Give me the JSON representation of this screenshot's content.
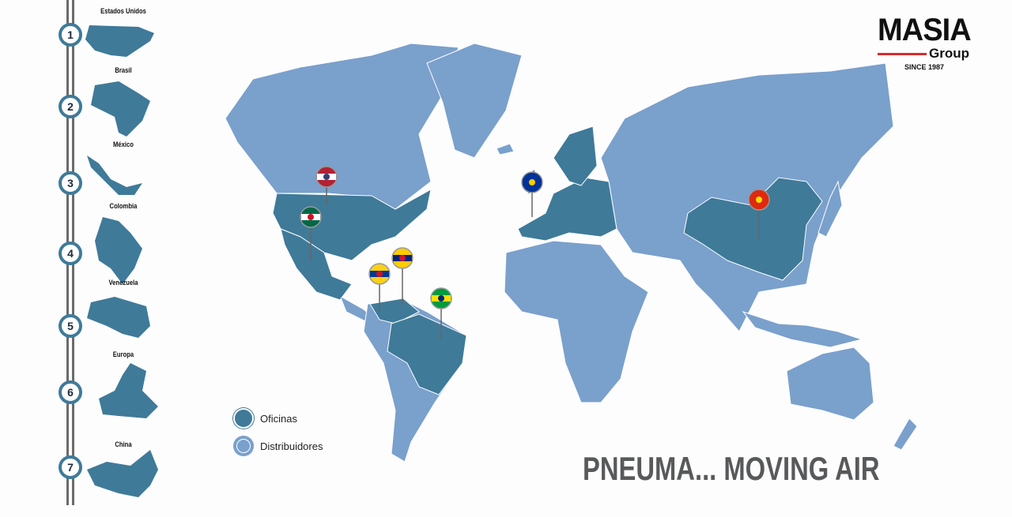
{
  "colors": {
    "office": "#3f7a99",
    "distributor": "#7aa0cc",
    "rail": "#6b6b6b",
    "logo_accent": "#d92b2b",
    "slogan": "#58595b"
  },
  "sidebar": {
    "items": [
      {
        "number": "1",
        "label": "Estados Unidos"
      },
      {
        "number": "2",
        "label": "Brasil"
      },
      {
        "number": "3",
        "label": "México"
      },
      {
        "number": "4",
        "label": "Colombia"
      },
      {
        "number": "5",
        "label": "Venezuela"
      },
      {
        "number": "6",
        "label": "Europa"
      },
      {
        "number": "7",
        "label": "China"
      }
    ]
  },
  "logo": {
    "name": "MASIA",
    "sub": "Group",
    "since": "SINCE 1987"
  },
  "legend": {
    "offices": "Oficinas",
    "distributors": "Distribuidores"
  },
  "pins": [
    "Estados Unidos",
    "México",
    "Colombia",
    "Venezuela",
    "Brasil",
    "Europa",
    "China"
  ],
  "slogan": "PNEUMA... MOVING AIR"
}
